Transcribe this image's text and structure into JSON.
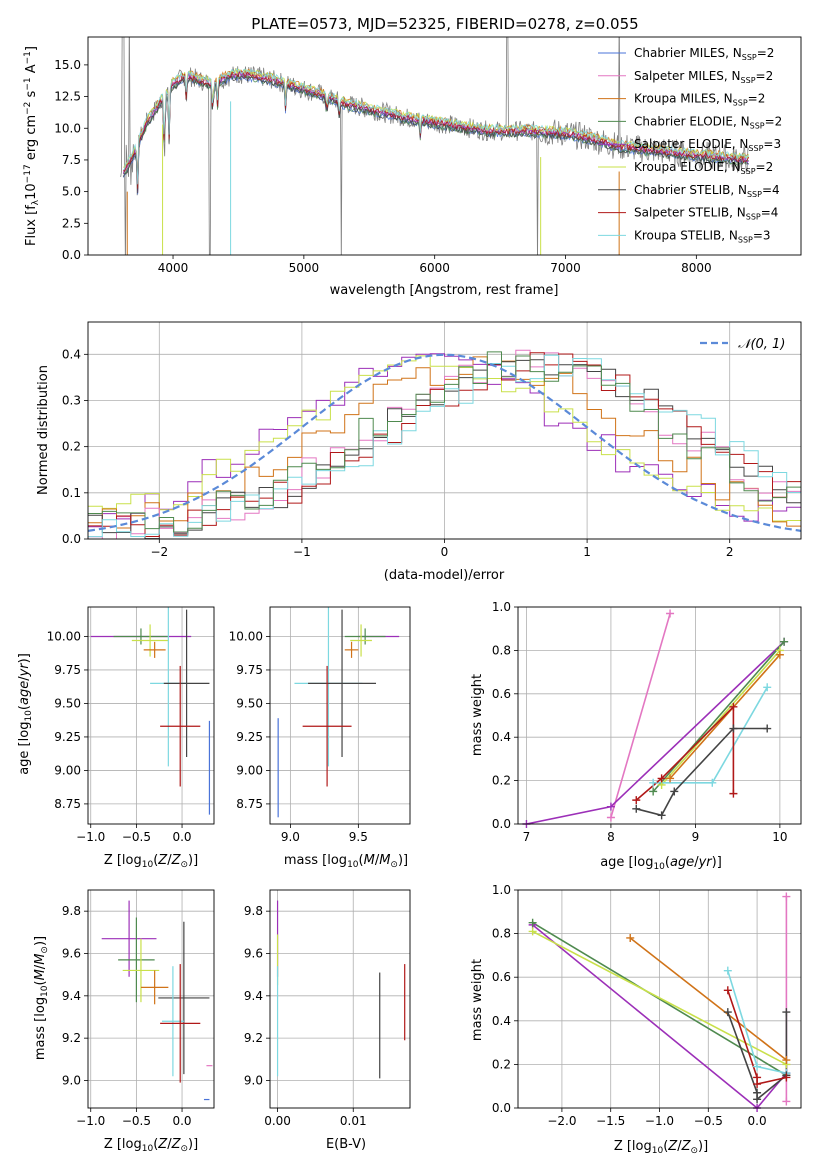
{
  "page": {
    "title": "PLATE=0573, MJD=52325, FIBERID=0278, z=0.055"
  },
  "colors": {
    "chabrier_miles": "#4a73d8",
    "salpeter_miles": "#e377c2",
    "kroupa_miles": "#d07318",
    "chabrier_elodie": "#4f8a4f",
    "salpeter_elodie": "#9c2fb8",
    "kroupa_elodie": "#c9e04a",
    "chabrier_stelib": "#444444",
    "salpeter_stelib": "#b01818",
    "kroupa_stelib": "#7dd8e0",
    "data": "#808080",
    "normal": "#5b8ad8",
    "grid": "#b0b0b0"
  },
  "chart_data": [
    {
      "type": "line",
      "title": "PLATE=0573, MJD=52325, FIBERID=0278, z=0.055",
      "xlabel": "wavelength [Angstrom, rest frame]",
      "ylabel": "Flux [f_λ 10^-17 erg cm^-2 s^-1 A^-1]",
      "xlim": [
        3350,
        8800
      ],
      "ylim": [
        0,
        17.2
      ],
      "xticks": [
        "4000",
        "5000",
        "6000",
        "7000",
        "8000"
      ],
      "yticks": [
        "0.0",
        "2.5",
        "5.0",
        "7.5",
        "10.0",
        "12.5",
        "15.0"
      ],
      "legend": [
        {
          "key": "chabrier_miles",
          "prefix": "Chabrier MILES, N",
          "sub": "SSP",
          "suffix": "=2"
        },
        {
          "key": "salpeter_miles",
          "prefix": "Salpeter MILES, N",
          "sub": "SSP",
          "suffix": "=2"
        },
        {
          "key": "kroupa_miles",
          "prefix": "Kroupa MILES, N",
          "sub": "SSP",
          "suffix": "=2"
        },
        {
          "key": "chabrier_elodie",
          "prefix": "Chabrier ELODIE, N",
          "sub": "SSP",
          "suffix": "=2"
        },
        {
          "key": "salpeter_elodie",
          "prefix": "Salpeter ELODIE, N",
          "sub": "SSP",
          "suffix": "=3"
        },
        {
          "key": "kroupa_elodie",
          "prefix": "Kroupa ELODIE, N",
          "sub": "SSP",
          "suffix": "=2"
        },
        {
          "key": "chabrier_stelib",
          "prefix": "Chabrier STELIB, N",
          "sub": "SSP",
          "suffix": "=4"
        },
        {
          "key": "salpeter_stelib",
          "prefix": "Salpeter STELIB, N",
          "sub": "SSP",
          "suffix": "=4"
        },
        {
          "key": "kroupa_stelib",
          "prefix": "Kroupa STELIB, N",
          "sub": "SSP",
          "suffix": "=3"
        }
      ],
      "continuum": [
        [
          3600,
          6.2
        ],
        [
          3650,
          7.0
        ],
        [
          3700,
          8.0
        ],
        [
          3800,
          10.5
        ],
        [
          3900,
          12.0
        ],
        [
          4000,
          13.5
        ],
        [
          4100,
          14.2
        ],
        [
          4200,
          13.8
        ],
        [
          4300,
          13.5
        ],
        [
          4400,
          14.0
        ],
        [
          4500,
          14.3
        ],
        [
          4700,
          14.0
        ],
        [
          4900,
          13.4
        ],
        [
          5100,
          12.8
        ],
        [
          5300,
          12.0
        ],
        [
          5500,
          11.5
        ],
        [
          5800,
          10.8
        ],
        [
          6100,
          10.3
        ],
        [
          6400,
          9.8
        ],
        [
          6700,
          9.8
        ],
        [
          7000,
          9.6
        ],
        [
          7200,
          9.2
        ],
        [
          7400,
          8.6
        ],
        [
          7800,
          8.1
        ],
        [
          8200,
          7.7
        ],
        [
          8400,
          7.5
        ]
      ]
    },
    {
      "type": "line",
      "xlabel": "(data-model)/error",
      "ylabel": "Normed distribution",
      "xlim": [
        -2.5,
        2.5
      ],
      "ylim": [
        0,
        0.47
      ],
      "xticks": [
        "−2",
        "−1",
        "0",
        "1",
        "2"
      ],
      "yticks": [
        "0.0",
        "0.1",
        "0.2",
        "0.3",
        "0.4"
      ],
      "legend": "N(0,1)"
    },
    {
      "type": "scatter",
      "xlabel": "Z [log10(Z/Z⊙)]",
      "ylabel": "age  [log10(age/yr)]",
      "xlim": [
        -1.03,
        0.35
      ],
      "ylim": [
        8.6,
        10.22
      ],
      "xticks": [
        "−1.0",
        "−0.5",
        "0.0"
      ],
      "yticks": [
        "8.75",
        "9.00",
        "9.25",
        "9.50",
        "9.75",
        "10.00"
      ],
      "points": [
        {
          "key": "salpeter_elodie",
          "x": -0.45,
          "xerr": 0.55,
          "y": 10.0,
          "yerr": 0.0
        },
        {
          "key": "chabrier_elodie",
          "x": -0.45,
          "xerr": 0.3,
          "y": 10.0,
          "yerr": 0.06
        },
        {
          "key": "kroupa_elodie",
          "x": -0.35,
          "xerr": 0.2,
          "y": 9.97,
          "yerr": 0.12
        },
        {
          "key": "kroupa_miles",
          "x": -0.3,
          "xerr": 0.12,
          "y": 9.9,
          "yerr": 0.06
        },
        {
          "key": "kroupa_stelib",
          "x": -0.15,
          "xerr": 0.2,
          "y": 9.65,
          "yerr": 0.62
        },
        {
          "key": "chabrier_stelib",
          "x": 0.05,
          "xerr": 0.25,
          "y": 9.65,
          "yerr": 0.55
        },
        {
          "key": "salpeter_stelib",
          "x": -0.02,
          "xerr": 0.22,
          "y": 9.33,
          "yerr": 0.45
        },
        {
          "key": "chabrier_miles",
          "x": 0.3,
          "xerr": 0.0,
          "y": 9.02,
          "yerr": 0.35
        }
      ]
    },
    {
      "type": "scatter",
      "xlabel": "mass [log10(M/M⊙)]",
      "ylabel": "",
      "xlim": [
        8.85,
        9.88
      ],
      "ylim": [
        8.6,
        10.22
      ],
      "xticks": [
        "9.0",
        "9.5"
      ],
      "yticks": [
        "8.75",
        "9.00",
        "9.25",
        "9.50",
        "9.75",
        "10.00"
      ],
      "points": [
        {
          "key": "salpeter_elodie",
          "x": 9.65,
          "xerr": 0.15,
          "y": 10.0,
          "yerr": 0.0
        },
        {
          "key": "chabrier_elodie",
          "x": 9.55,
          "xerr": 0.15,
          "y": 10.0,
          "yerr": 0.06
        },
        {
          "key": "kroupa_elodie",
          "x": 9.52,
          "xerr": 0.08,
          "y": 9.97,
          "yerr": 0.12
        },
        {
          "key": "kroupa_miles",
          "x": 9.45,
          "xerr": 0.05,
          "y": 9.9,
          "yerr": 0.06
        },
        {
          "key": "kroupa_stelib",
          "x": 9.28,
          "xerr": 0.25,
          "y": 9.65,
          "yerr": 0.62
        },
        {
          "key": "chabrier_stelib",
          "x": 9.38,
          "xerr": 0.25,
          "y": 9.65,
          "yerr": 0.55
        },
        {
          "key": "salpeter_stelib",
          "x": 9.27,
          "xerr": 0.18,
          "y": 9.33,
          "yerr": 0.45
        },
        {
          "key": "chabrier_miles",
          "x": 8.91,
          "xerr": 0.0,
          "y": 9.02,
          "yerr": 0.37
        }
      ]
    },
    {
      "type": "line",
      "xlabel": "age  [log10(age/yr)]",
      "ylabel": "mass weight",
      "xlim": [
        6.9,
        10.25
      ],
      "ylim": [
        0,
        1.0
      ],
      "xticks": [
        "7",
        "8",
        "9",
        "10"
      ],
      "yticks": [
        "0.0",
        "0.2",
        "0.4",
        "0.6",
        "0.8",
        "1.0"
      ],
      "series": [
        {
          "key": "salpeter_miles",
          "x": [
            8.0,
            8.7
          ],
          "y": [
            0.03,
            0.97
          ]
        },
        {
          "key": "salpeter_elodie",
          "x": [
            7.0,
            8.0,
            10.05
          ],
          "y": [
            0.0,
            0.08,
            0.84
          ]
        },
        {
          "key": "chabrier_elodie",
          "x": [
            8.5,
            10.05
          ],
          "y": [
            0.15,
            0.84
          ]
        },
        {
          "key": "kroupa_elodie",
          "x": [
            8.6,
            10.0
          ],
          "y": [
            0.18,
            0.8
          ]
        },
        {
          "key": "kroupa_miles",
          "x": [
            8.7,
            10.0
          ],
          "y": [
            0.21,
            0.78
          ]
        },
        {
          "key": "kroupa_stelib",
          "x": [
            8.5,
            9.2,
            9.85
          ],
          "y": [
            0.19,
            0.19,
            0.63
          ]
        },
        {
          "key": "chabrier_stelib",
          "x": [
            8.3,
            8.6,
            8.75,
            9.45,
            9.85
          ],
          "y": [
            0.07,
            0.04,
            0.15,
            0.44,
            0.44
          ]
        },
        {
          "key": "salpeter_stelib",
          "x": [
            8.3,
            8.6,
            9.45,
            9.45
          ],
          "y": [
            0.11,
            0.21,
            0.54,
            0.14
          ]
        }
      ]
    },
    {
      "type": "scatter",
      "xlabel": "Z [log10(Z/Z⊙)]",
      "ylabel": "mass [log10(M/M⊙)]",
      "xlim": [
        -1.03,
        0.35
      ],
      "ylim": [
        8.87,
        9.9
      ],
      "xticks": [
        "−1.0",
        "−0.5",
        "0.0"
      ],
      "yticks": [
        "9.0",
        "9.2",
        "9.4",
        "9.6",
        "9.8"
      ],
      "points": [
        {
          "key": "salpeter_elodie",
          "x": -0.58,
          "xerr": 0.3,
          "y": 9.67,
          "yerr": 0.18
        },
        {
          "key": "chabrier_elodie",
          "x": -0.5,
          "xerr": 0.2,
          "y": 9.57,
          "yerr": 0.2
        },
        {
          "key": "kroupa_elodie",
          "x": -0.45,
          "xerr": 0.2,
          "y": 9.52,
          "yerr": 0.15
        },
        {
          "key": "kroupa_miles",
          "x": -0.3,
          "xerr": 0.15,
          "y": 9.44,
          "yerr": 0.08
        },
        {
          "key": "chabrier_stelib",
          "x": 0.02,
          "xerr": 0.28,
          "y": 9.39,
          "yerr": 0.36
        },
        {
          "key": "kroupa_stelib",
          "x": -0.1,
          "xerr": 0.12,
          "y": 9.28,
          "yerr": 0.26
        },
        {
          "key": "salpeter_stelib",
          "x": -0.02,
          "xerr": 0.22,
          "y": 9.27,
          "yerr": 0.28
        },
        {
          "key": "chabrier_miles",
          "x": 0.27,
          "xerr": 0.03,
          "y": 8.91,
          "yerr": 0.0
        },
        {
          "key": "salpeter_miles",
          "x": 0.3,
          "xerr": 0.0,
          "y": 9.07,
          "yerr": 0.0
        }
      ]
    },
    {
      "type": "scatter",
      "xlabel": "E(B-V)",
      "ylabel": "",
      "xlim": [
        -0.001,
        0.0175
      ],
      "ylim": [
        8.87,
        9.9
      ],
      "xticks": [
        "0.00",
        "0.01"
      ],
      "yticks": [
        "9.0",
        "9.2",
        "9.4",
        "9.6",
        "9.8"
      ],
      "points": [
        {
          "key": "salpeter_elodie",
          "x": 0.0,
          "y": 9.67,
          "yerr": 0.18
        },
        {
          "key": "kroupa_elodie",
          "x": 0.0,
          "y": 9.57,
          "yerr": 0.12
        },
        {
          "key": "kroupa_stelib",
          "x": 0.0,
          "y": 9.28,
          "yerr": 0.26
        },
        {
          "key": "chabrier_stelib",
          "x": 0.0135,
          "y": 9.26,
          "yerr": 0.25
        },
        {
          "key": "salpeter_stelib",
          "x": 0.0168,
          "y": 9.37,
          "yerr": 0.18
        }
      ]
    },
    {
      "type": "line",
      "xlabel": "Z [log10(Z/Z⊙)]",
      "ylabel": "mass weight",
      "xlim": [
        -2.45,
        0.45
      ],
      "ylim": [
        0,
        1.0
      ],
      "xticks": [
        "−2.0",
        "−1.5",
        "−1.0",
        "−0.5",
        "0.0"
      ],
      "yticks": [
        "0.0",
        "0.2",
        "0.4",
        "0.6",
        "0.8",
        "1.0"
      ],
      "series": [
        {
          "key": "salpeter_miles",
          "x": [
            0.3,
            0.3
          ],
          "y": [
            0.03,
            0.97
          ]
        },
        {
          "key": "salpeter_elodie",
          "x": [
            -2.3,
            0.0,
            0.3
          ],
          "y": [
            0.84,
            0.0,
            0.16
          ]
        },
        {
          "key": "chabrier_elodie",
          "x": [
            -2.3,
            0.3
          ],
          "y": [
            0.85,
            0.15
          ]
        },
        {
          "key": "kroupa_elodie",
          "x": [
            -2.3,
            0.3
          ],
          "y": [
            0.81,
            0.2
          ]
        },
        {
          "key": "kroupa_miles",
          "x": [
            -1.3,
            0.3
          ],
          "y": [
            0.78,
            0.22
          ]
        },
        {
          "key": "kroupa_stelib",
          "x": [
            -0.3,
            0.0,
            0.3
          ],
          "y": [
            0.63,
            0.19,
            0.16
          ]
        },
        {
          "key": "chabrier_stelib",
          "x": [
            -0.3,
            0.0,
            0.0,
            0.3,
            0.3
          ],
          "y": [
            0.44,
            0.07,
            0.04,
            0.15,
            0.44
          ]
        },
        {
          "key": "salpeter_stelib",
          "x": [
            -0.3,
            0.0,
            0.0,
            0.3
          ],
          "y": [
            0.54,
            0.14,
            0.11,
            0.14
          ]
        }
      ]
    }
  ]
}
